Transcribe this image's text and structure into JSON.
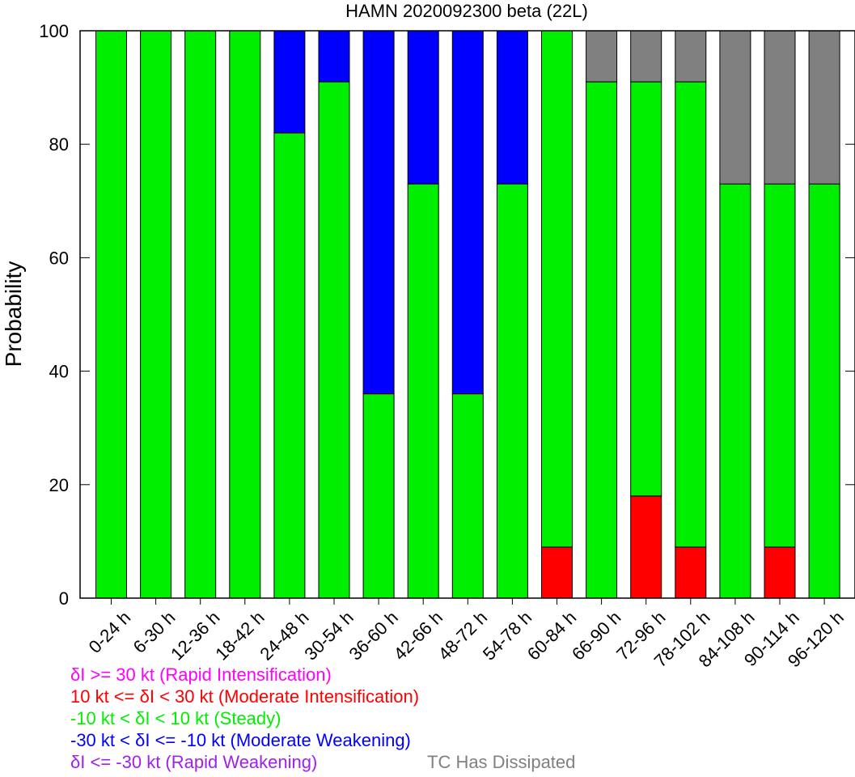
{
  "chart_data": {
    "type": "bar",
    "stacked": true,
    "title": "HAMN 2020092300 beta (22L)",
    "ylabel": "Probability",
    "xlabel": "",
    "ylim": [
      0,
      100
    ],
    "yticks": [
      0,
      20,
      40,
      60,
      80,
      100
    ],
    "grid": false,
    "categories": [
      "0-24 h",
      "6-30 h",
      "12-36 h",
      "18-42 h",
      "24-48 h",
      "30-54 h",
      "36-60 h",
      "42-66 h",
      "48-72 h",
      "54-78 h",
      "60-84 h",
      "66-90 h",
      "72-96 h",
      "78-102 h",
      "84-108 h",
      "90-114 h",
      "96-120 h"
    ],
    "series": [
      {
        "name": "δI >= 30 kt (Rapid Intensification)",
        "color": "#ff00ff",
        "values": [
          0,
          0,
          0,
          0,
          0,
          0,
          0,
          0,
          0,
          0,
          0,
          0,
          0,
          0,
          0,
          0,
          0
        ]
      },
      {
        "name": "10 kt <= δI < 30 kt (Moderate Intensification)",
        "color": "#ff0000",
        "values": [
          0,
          0,
          0,
          0,
          0,
          0,
          0,
          0,
          0,
          0,
          9,
          0,
          18,
          9,
          0,
          9,
          0
        ]
      },
      {
        "name": "-10 kt < δI < 10 kt (Steady)",
        "color": "#00ee00",
        "values": [
          100,
          100,
          100,
          100,
          82,
          91,
          36,
          73,
          36,
          73,
          91,
          91,
          73,
          82,
          73,
          64,
          73
        ]
      },
      {
        "name": "-30 kt < δI <= -10 kt (Moderate Weakening)",
        "color": "#0000ff",
        "values": [
          0,
          0,
          0,
          0,
          18,
          9,
          64,
          27,
          64,
          27,
          0,
          0,
          0,
          0,
          0,
          0,
          0
        ]
      },
      {
        "name": "δI <= -30 kt (Rapid Weakening)",
        "color": "#a020f0",
        "values": [
          0,
          0,
          0,
          0,
          0,
          0,
          0,
          0,
          0,
          0,
          0,
          0,
          0,
          0,
          0,
          0,
          0
        ]
      },
      {
        "name": "TC Has Dissipated",
        "color": "#808080",
        "values": [
          0,
          0,
          0,
          0,
          0,
          0,
          0,
          0,
          0,
          0,
          0,
          9,
          9,
          9,
          27,
          27,
          27
        ]
      }
    ]
  },
  "legend": {
    "ri": {
      "text": "δI >= 30 kt (Rapid Intensification)",
      "color": "#ff00ff"
    },
    "mi": {
      "text": "10 kt <= δI < 30 kt (Moderate Intensification)",
      "color": "#ff0000"
    },
    "steady": {
      "text": "-10 kt < δI < 10 kt (Steady)",
      "color": "#00ee00"
    },
    "mw": {
      "text": "-30 kt < δI <= -10 kt (Moderate Weakening)",
      "color": "#0000ff"
    },
    "rw": {
      "text": "δI <= -30 kt (Rapid Weakening)",
      "color": "#a020f0"
    },
    "dissipated": {
      "text": "TC Has Dissipated",
      "color": "#808080"
    }
  }
}
